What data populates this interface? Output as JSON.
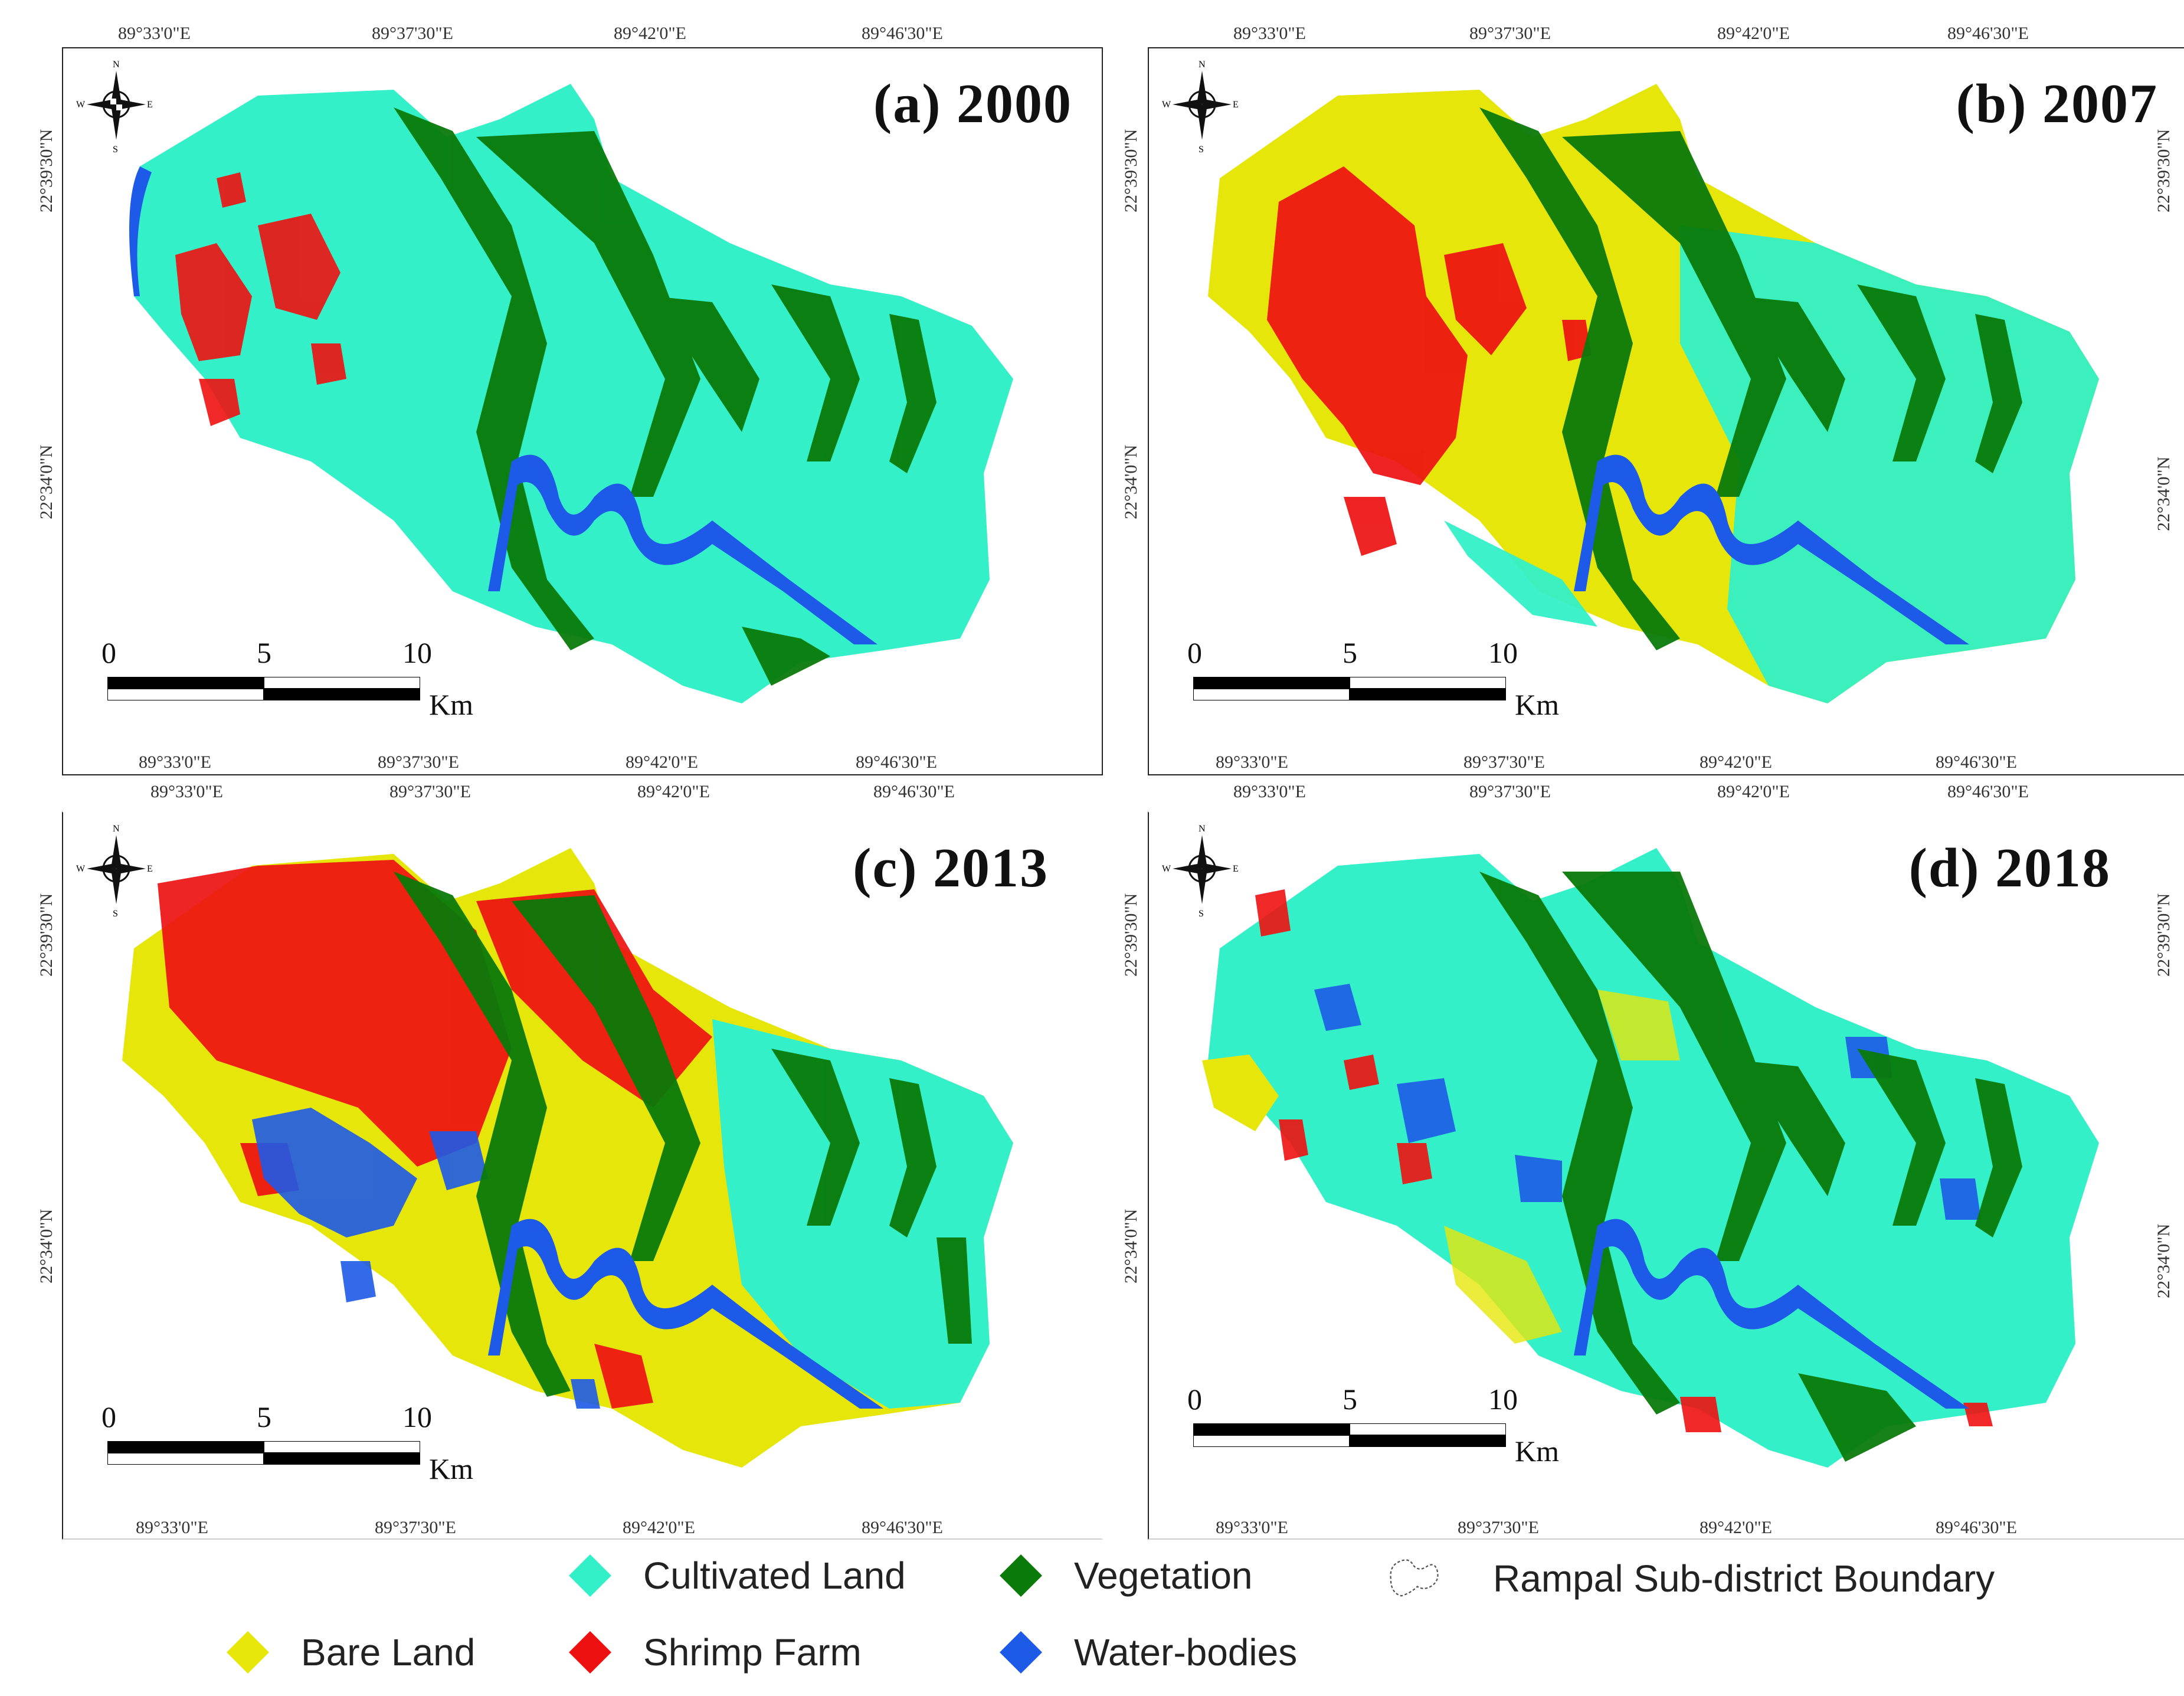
{
  "colors": {
    "cultivated": "#33f0c8",
    "vegetation": "#0a7a0a",
    "bare": "#e6e60a",
    "shrimp": "#ee1111",
    "water": "#1e5ae8"
  },
  "compass": {
    "n": "N",
    "s": "S",
    "e": "E",
    "w": "W"
  },
  "scale": {
    "n0": "0",
    "n5": "5",
    "n10": "10",
    "unit": "Km"
  },
  "panels": [
    {
      "title": "(a) 2000",
      "top_ticks": [
        "89°33'0\"E",
        "89°37'30\"E",
        "89°42'0\"E",
        "89°46'30\"E"
      ],
      "bottom_ticks": [
        "89°33'0\"E",
        "89°37'30\"E",
        "89°42'0\"E",
        "89°46'30\"E"
      ],
      "left_ticks": [
        "22°39'30\"N",
        "22°34'0\"N"
      ]
    },
    {
      "title": "(b) 2007",
      "top_ticks": [
        "89°33'0\"E",
        "89°37'30\"E",
        "89°42'0\"E",
        "89°46'30\"E"
      ],
      "bottom_ticks": [
        "89°33'0\"E",
        "89°37'30\"E",
        "89°42'0\"E",
        "89°46'30\"E"
      ],
      "left_ticks": [
        "22°39'30\"N",
        "22°34'0\"N"
      ],
      "right_ticks": [
        "22°39'30\"N",
        "22°34'0\"N"
      ]
    },
    {
      "title": "(c) 2013",
      "top_ticks": [
        "89°33'0\"E",
        "89°37'30\"E",
        "89°42'0\"E",
        "89°46'30\"E"
      ],
      "bottom_ticks": [
        "89°33'0\"E",
        "89°37'30\"E",
        "89°42'0\"E",
        "89°46'30\"E"
      ],
      "left_ticks": [
        "22°39'30\"N",
        "22°34'0\"N"
      ]
    },
    {
      "title": "(d) 2018",
      "top_ticks": [
        "89°33'0\"E",
        "89°37'30\"E",
        "89°42'0\"E",
        "89°46'30\"E"
      ],
      "bottom_ticks": [
        "89°33'0\"E",
        "89°37'30\"E",
        "89°42'0\"E",
        "89°46'30\"E"
      ],
      "left_ticks": [
        "22°39'30\"N",
        "22°34'0\"N"
      ],
      "right_ticks": [
        "22°39'30\"N",
        "22°34'0\"N"
      ]
    }
  ],
  "legend": {
    "cultivated": "Cultivated Land",
    "vegetation": "Vegetation",
    "boundary": "Rampal Sub-district Boundary",
    "bare": "Bare Land",
    "shrimp": "Shrimp Farm",
    "water": "Water-bodies"
  }
}
